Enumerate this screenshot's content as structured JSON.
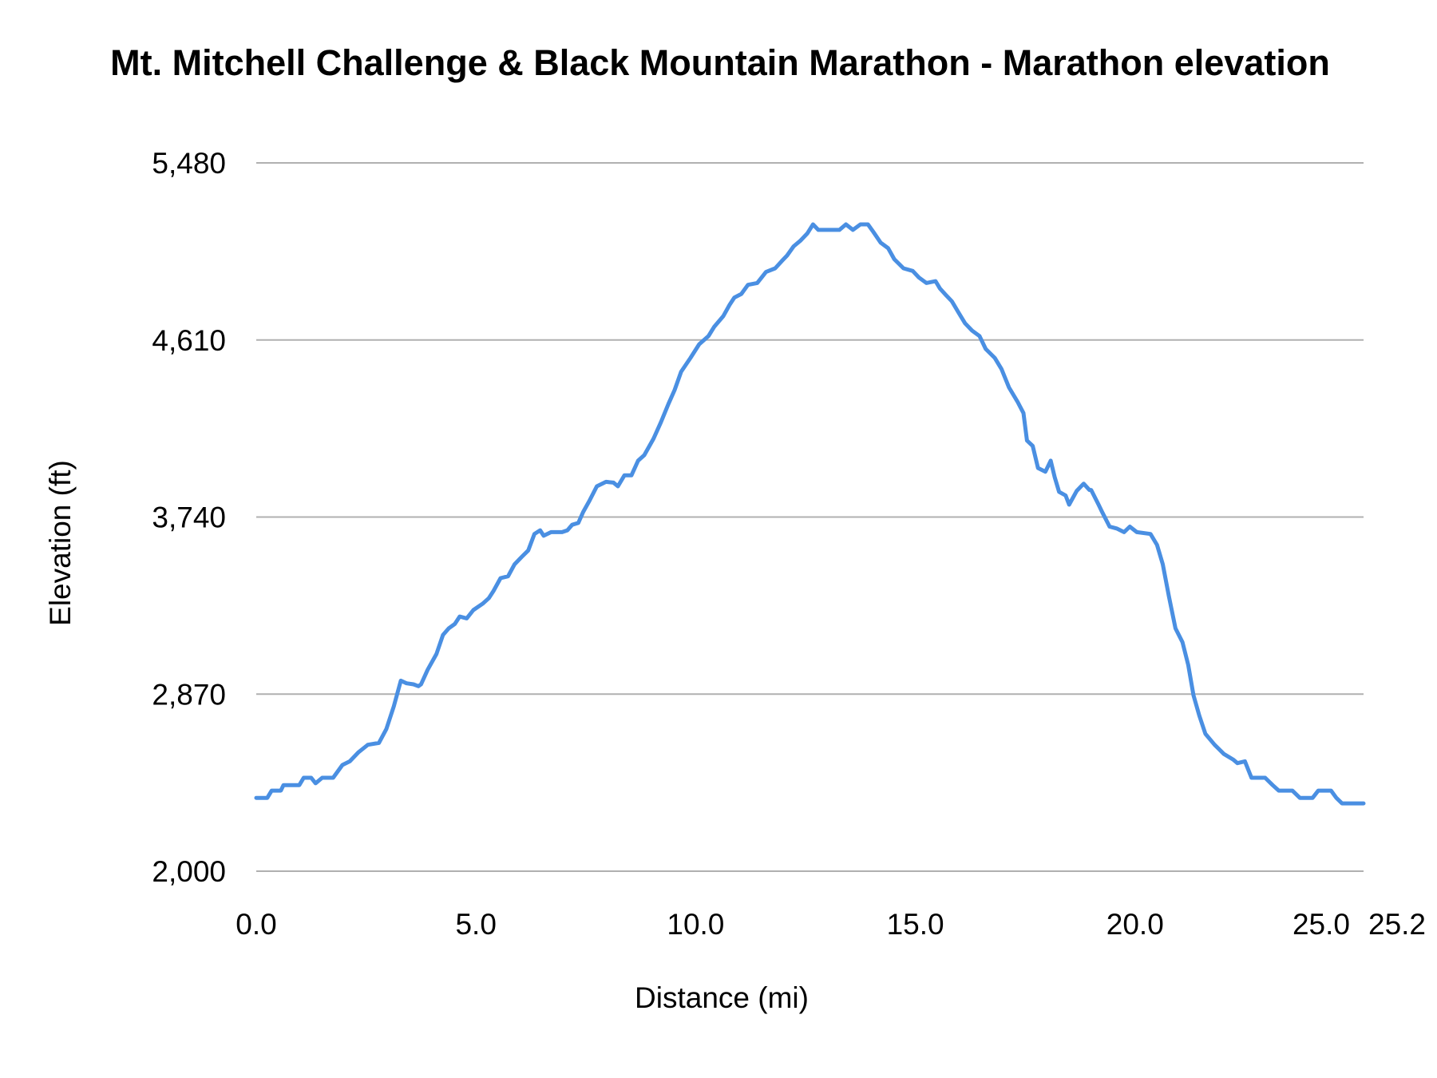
{
  "chart_data": {
    "type": "line",
    "title": "Mt. Mitchell Challenge & Black Mountain Marathon - Marathon elevation",
    "xlabel": "Distance (mi)",
    "ylabel": "Elevation (ft)",
    "xlim": [
      0,
      25.2
    ],
    "ylim": [
      2000,
      5480
    ],
    "xticks": [
      "0.0",
      "5.0",
      "10.0",
      "15.0",
      "20.0",
      "25.0",
      "25.2"
    ],
    "xtick_values": [
      0,
      5,
      10,
      15,
      20,
      25,
      25.2
    ],
    "yticks": [
      "2,000",
      "2,870",
      "3,740",
      "4,610",
      "5,480"
    ],
    "ytick_values": [
      2000,
      2870,
      3740,
      4610,
      5480
    ],
    "grid": "horizontal",
    "line_color": "#4a8fe2",
    "grid_color": "#b0b0b0",
    "series": [
      {
        "x": [
          0,
          0.25,
          0.35,
          0.56,
          0.62,
          0.98,
          1.08,
          1.25,
          1.35,
          1.5,
          1.75,
          1.96,
          2.13,
          2.33,
          2.54,
          2.79,
          2.96,
          3.13,
          3.29,
          3.42,
          3.58,
          3.69,
          3.75,
          3.9,
          4.1,
          4.25,
          4.38,
          4.52,
          4.63,
          4.79,
          4.94,
          5.15,
          5.29,
          5.4,
          5.56,
          5.73,
          5.88,
          6.04,
          6.19,
          6.33,
          6.46,
          6.54,
          6.71,
          6.96,
          7.08,
          7.19,
          7.33,
          7.44,
          7.58,
          7.75,
          7.96,
          8.13,
          8.23,
          8.38,
          8.54,
          8.69,
          8.83,
          9.04,
          9.21,
          9.38,
          9.52,
          9.67,
          9.88,
          10.08,
          10.29,
          10.42,
          10.63,
          10.77,
          10.88,
          11.04,
          11.19,
          11.4,
          11.6,
          11.81,
          11.96,
          12.08,
          12.23,
          12.38,
          12.54,
          12.67,
          12.79,
          13.27,
          13.42,
          13.58,
          13.75,
          13.92,
          14.04,
          14.21,
          14.38,
          14.52,
          14.73,
          14.94,
          15.08,
          15.25,
          15.46,
          15.56,
          15.71,
          15.83,
          15.98,
          16.13,
          16.29,
          16.46,
          16.6,
          16.81,
          16.96,
          17.13,
          17.33,
          17.46,
          17.54,
          17.67,
          17.79,
          17.96,
          18.08,
          18.17,
          18.27,
          18.42,
          18.5,
          18.67,
          18.83,
          18.96,
          19.0,
          19.17,
          19.25,
          19.42,
          19.58,
          19.75,
          19.88,
          20.04,
          20.35,
          20.5,
          20.63,
          20.77,
          20.92,
          21.08,
          21.21,
          21.33,
          21.46,
          21.6,
          21.81,
          22.02,
          22.23,
          22.33,
          22.5,
          22.65,
          22.96,
          23.13,
          23.27,
          23.58,
          23.75,
          24.04,
          24.17,
          24.46,
          24.58,
          24.71,
          25.2
        ],
        "y": [
          2360,
          2360,
          2396,
          2396,
          2423,
          2423,
          2459,
          2459,
          2432,
          2459,
          2459,
          2522,
          2540,
          2585,
          2621,
          2630,
          2698,
          2810,
          2936,
          2923,
          2918,
          2909,
          2918,
          2990,
          3067,
          3161,
          3193,
          3215,
          3251,
          3242,
          3283,
          3314,
          3341,
          3377,
          3440,
          3449,
          3508,
          3544,
          3576,
          3657,
          3675,
          3648,
          3666,
          3666,
          3675,
          3702,
          3711,
          3765,
          3819,
          3891,
          3913,
          3909,
          3891,
          3945,
          3945,
          4017,
          4044,
          4125,
          4206,
          4296,
          4364,
          4454,
          4521,
          4589,
          4629,
          4674,
          4728,
          4782,
          4818,
          4836,
          4881,
          4890,
          4944,
          4962,
          4998,
          5025,
          5070,
          5097,
          5133,
          5178,
          5151,
          5151,
          5178,
          5151,
          5178,
          5178,
          5142,
          5088,
          5061,
          5007,
          4962,
          4949,
          4917,
          4890,
          4899,
          4863,
          4827,
          4800,
          4746,
          4692,
          4656,
          4629,
          4566,
          4521,
          4467,
          4377,
          4305,
          4251,
          4116,
          4089,
          3981,
          3963,
          4017,
          3936,
          3864,
          3846,
          3801,
          3868,
          3904,
          3873,
          3873,
          3801,
          3765,
          3693,
          3684,
          3666,
          3693,
          3666,
          3657,
          3603,
          3508,
          3350,
          3193,
          3125,
          3013,
          2864,
          2765,
          2675,
          2621,
          2576,
          2549,
          2531,
          2540,
          2459,
          2459,
          2423,
          2396,
          2396,
          2360,
          2360,
          2396,
          2396,
          2360,
          2333,
          2333
        ]
      }
    ]
  }
}
